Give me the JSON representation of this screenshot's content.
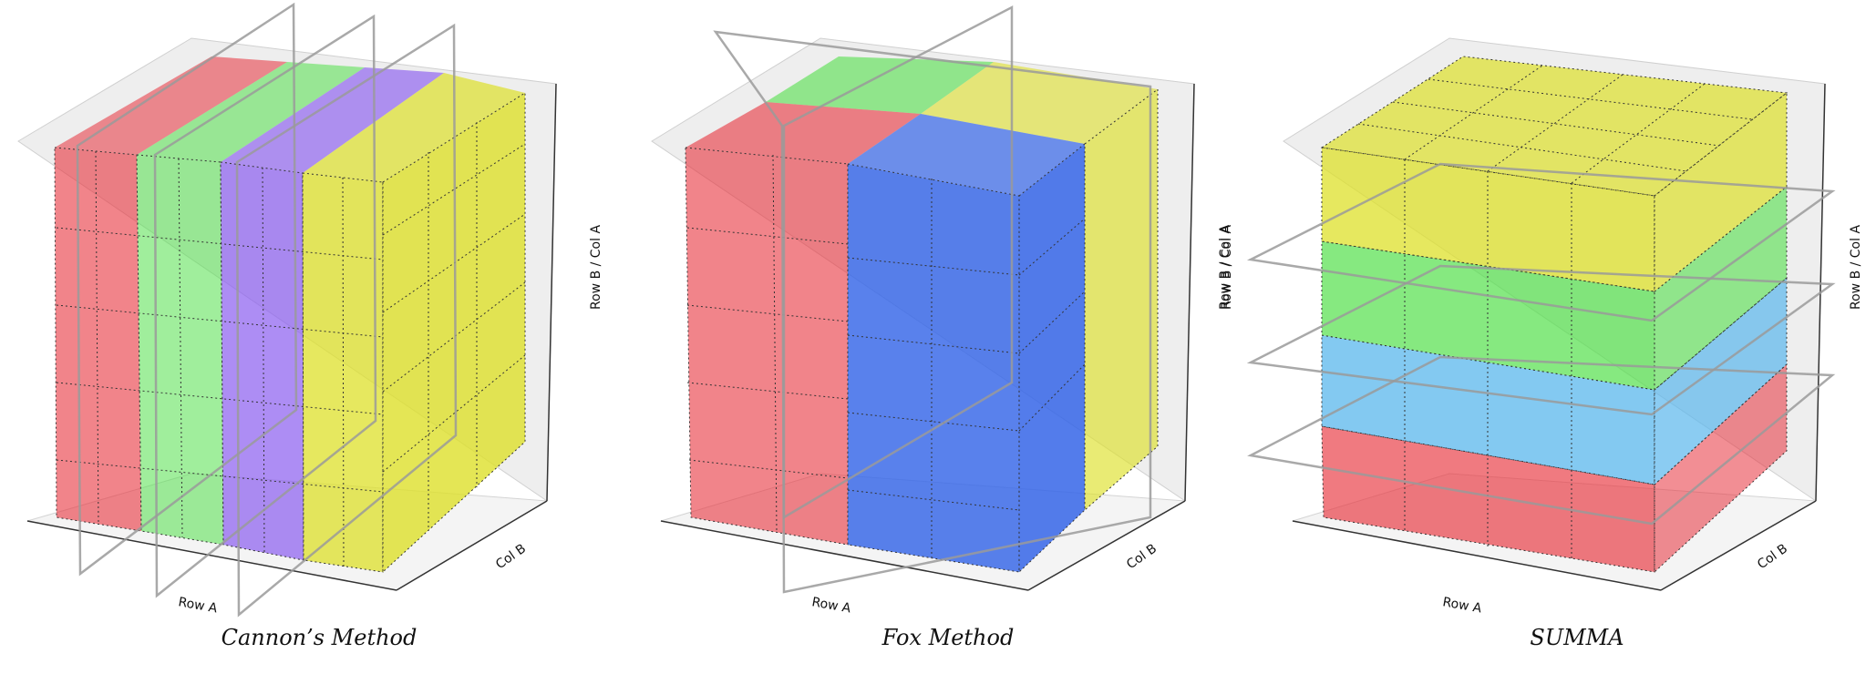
{
  "colors": {
    "red": "#e8323c",
    "green": "#52e04a",
    "purple": "#8a5cf0",
    "yellow": "#dde02a",
    "blue": "#3565e8",
    "sky": "#5ab7ec",
    "pane_floor": "#f2f2f2",
    "pane_wall": "#ebebeb",
    "plane": "#8c8c8c",
    "grid": "#222222"
  },
  "panels": [
    {
      "id": "cannon",
      "title": "Cannon’s Method",
      "axes": {
        "row": "Row A",
        "col": "Col B",
        "depth": "Row B / Col A"
      },
      "decomposition": "vertical slabs along Row A",
      "bands": [
        "red",
        "green",
        "purple",
        "yellow"
      ],
      "planes": 3
    },
    {
      "id": "fox",
      "title": "Fox Method",
      "axes": {
        "row": "Row A",
        "col": "Col B",
        "depth": "Row B / Col A"
      },
      "decomposition": "blocks of Row A × Col B",
      "bands": [
        "red",
        "blue",
        "green",
        "yellow"
      ],
      "planes": 2
    },
    {
      "id": "summa",
      "title": "SUMMA",
      "axes": {
        "row": "Row A",
        "col": "Col B",
        "depth": "Row B / Col A"
      },
      "decomposition": "horizontal layers along Row B / Col A",
      "bands": [
        "red",
        "sky",
        "green",
        "yellow"
      ],
      "planes": 3
    }
  ]
}
